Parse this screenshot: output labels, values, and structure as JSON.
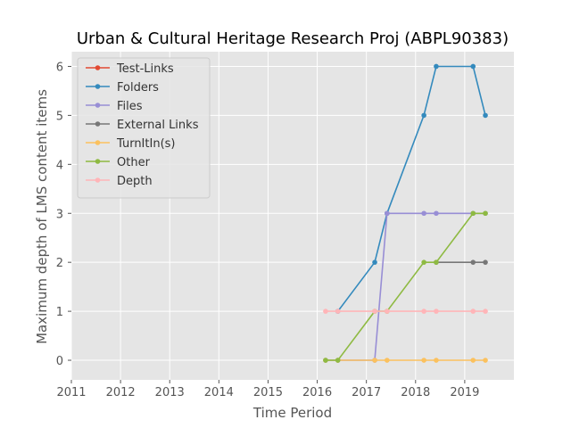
{
  "chart_data": {
    "type": "line",
    "title": "Urban & Cultural Heritage Research Proj (ABPL90383)",
    "xlabel": "Time Period",
    "ylabel": "Maximum depth of LMS content items",
    "xlim": [
      2011,
      2020
    ],
    "ylim": [
      -0.4,
      6.3
    ],
    "xticks": [
      "2011",
      "2012",
      "2013",
      "2014",
      "2015",
      "2016",
      "2017",
      "2018",
      "2019"
    ],
    "yticks": [
      "0",
      "1",
      "2",
      "3",
      "4",
      "5",
      "6"
    ],
    "grid": true,
    "legend_position": "upper-left",
    "x": [
      2016.17,
      2016.42,
      2017.17,
      2017.42,
      2018.17,
      2018.42,
      2019.17,
      2019.42
    ],
    "series": [
      {
        "name": "Test-Links",
        "color": "#E24A33",
        "values": [
          null,
          null,
          null,
          null,
          null,
          null,
          null,
          null
        ]
      },
      {
        "name": "Folders",
        "color": "#348ABD",
        "values": [
          null,
          1,
          2,
          3,
          5,
          6,
          6,
          5
        ]
      },
      {
        "name": "Files",
        "color": "#988ED5",
        "values": [
          0,
          0,
          0,
          3,
          3,
          3,
          3,
          3
        ]
      },
      {
        "name": "External Links",
        "color": "#777777",
        "values": [
          null,
          null,
          null,
          null,
          null,
          2,
          2,
          2
        ]
      },
      {
        "name": "TurnItIn(s)",
        "color": "#FBC15E",
        "values": [
          0,
          0,
          0,
          0,
          0,
          0,
          0,
          0
        ]
      },
      {
        "name": "Other",
        "color": "#8EBA42",
        "values": [
          0,
          0,
          1,
          1,
          2,
          2,
          3,
          3
        ]
      },
      {
        "name": "Depth",
        "color": "#FFB5B8",
        "values": [
          1,
          1,
          1,
          1,
          1,
          1,
          1,
          1
        ]
      }
    ]
  }
}
